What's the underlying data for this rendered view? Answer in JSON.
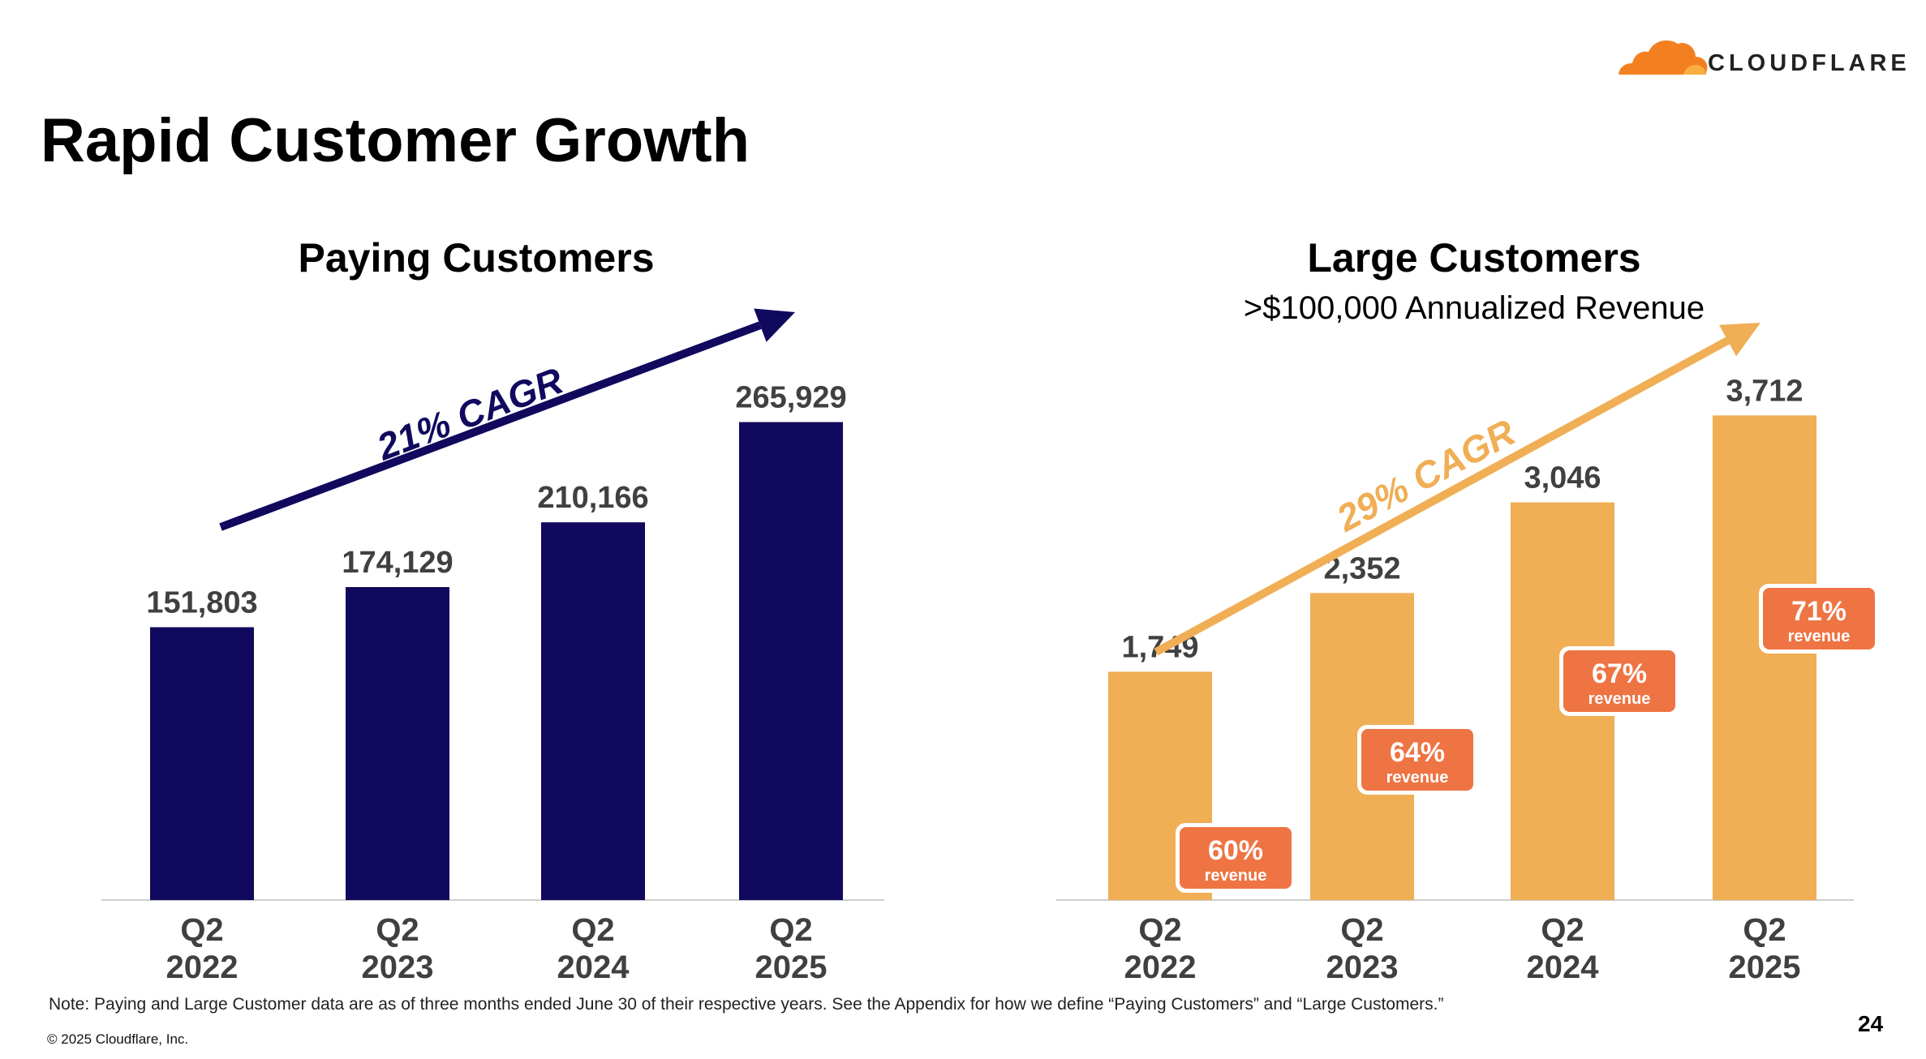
{
  "page": {
    "title": "Rapid Customer Growth",
    "logo_text": "CLOUDFLARE",
    "footnote": "Note: Paying and Large Customer data are as of three months ended June 30 of their respective years. See the Appendix for how we define “Paying Customers” and “Large Customers.”",
    "copyright": "© 2025 Cloudflare, Inc.",
    "page_number": "24"
  },
  "colors": {
    "navy": "#10095E",
    "gold": "#F0AE55",
    "orange_badge": "#EE7443",
    "value_label": "#404040",
    "logo_orange": "#F38020",
    "logo_light": "#FBAD41"
  },
  "chart_data": [
    {
      "type": "bar",
      "title": "Paying Customers",
      "subtitle": "",
      "categories": [
        "Q2\n2022",
        "Q2\n2023",
        "Q2\n2024",
        "Q2\n2025"
      ],
      "values": [
        151803,
        174129,
        210166,
        265929
      ],
      "value_labels": [
        "151,803",
        "174,129",
        "210,166",
        "265,929"
      ],
      "annotation": "21% CAGR",
      "color": "#10095E",
      "ylim": [
        0,
        300000
      ],
      "grid": false,
      "legend": "none"
    },
    {
      "type": "bar",
      "title": "Large Customers",
      "subtitle": ">$100,000 Annualized Revenue",
      "categories": [
        "Q2\n2022",
        "Q2\n2023",
        "Q2\n2024",
        "Q2\n2025"
      ],
      "values": [
        1749,
        2352,
        3046,
        3712
      ],
      "value_labels": [
        "1,749",
        "2,352",
        "3,046",
        "3,712"
      ],
      "annotation": "29% CAGR",
      "badges": [
        {
          "pct": "60%",
          "label": "revenue"
        },
        {
          "pct": "64%",
          "label": "revenue"
        },
        {
          "pct": "67%",
          "label": "revenue"
        },
        {
          "pct": "71%",
          "label": "revenue"
        }
      ],
      "color": "#F0AE55",
      "ylim": [
        0,
        4130
      ],
      "grid": false,
      "legend": "none"
    }
  ]
}
